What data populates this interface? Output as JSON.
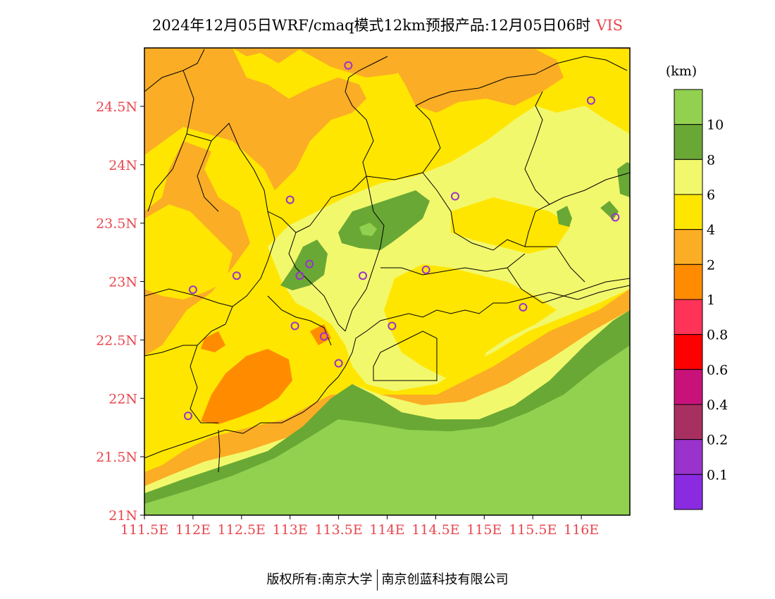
{
  "title": {
    "main": "2024年12月05日WRF/cmaq模式12km预报产品:12月05日06时",
    "variable": "VIS"
  },
  "unit": "(km)",
  "colorbar": {
    "labels": [
      "10",
      "8",
      "6",
      "4",
      "2",
      "1",
      "0.8",
      "0.6",
      "0.4",
      "0.2",
      "0.1"
    ],
    "colors": [
      "#92d050",
      "#6aa835",
      "#f2f86c",
      "#ffe600",
      "#fbad25",
      "#ff8c00",
      "#ff3358",
      "#ff0000",
      "#c8127a",
      "#a83060",
      "#9933cc",
      "#8a2be2"
    ]
  },
  "axes": {
    "lat_labels": [
      "24.5N",
      "24N",
      "23.5N",
      "23N",
      "22.5N",
      "22N",
      "21.5N",
      "21N"
    ],
    "lon_labels": [
      "111.5E",
      "112E",
      "112.5E",
      "113E",
      "113.5E",
      "114E",
      "114.5E",
      "115E",
      "115.5E",
      "116E"
    ],
    "lat_values": [
      24.5,
      24.0,
      23.5,
      23.0,
      22.5,
      22.0,
      21.5,
      21.0
    ],
    "lon_values": [
      111.5,
      112.0,
      112.5,
      113.0,
      113.5,
      114.0,
      114.5,
      115.0,
      115.5,
      116.0
    ],
    "lon_range": [
      111.5,
      116.5
    ],
    "lat_range": [
      21.0,
      25.0
    ]
  },
  "city_markers": [
    {
      "lon": 113.6,
      "lat": 24.85
    },
    {
      "lon": 116.1,
      "lat": 24.55
    },
    {
      "lon": 113.0,
      "lat": 23.7
    },
    {
      "lon": 114.7,
      "lat": 23.73
    },
    {
      "lon": 116.35,
      "lat": 23.55
    },
    {
      "lon": 113.2,
      "lat": 23.15
    },
    {
      "lon": 113.1,
      "lat": 23.05
    },
    {
      "lon": 112.45,
      "lat": 23.05
    },
    {
      "lon": 113.75,
      "lat": 23.05
    },
    {
      "lon": 114.4,
      "lat": 23.1
    },
    {
      "lon": 112.0,
      "lat": 22.93
    },
    {
      "lon": 115.4,
      "lat": 22.78
    },
    {
      "lon": 113.05,
      "lat": 22.62
    },
    {
      "lon": 114.05,
      "lat": 22.62
    },
    {
      "lon": 113.35,
      "lat": 22.53
    },
    {
      "lon": 113.5,
      "lat": 22.3
    },
    {
      "lon": 111.95,
      "lat": 21.85
    }
  ],
  "footer": {
    "left": "版权所有:南京大学",
    "right": "南京创蓝科技有限公司"
  }
}
